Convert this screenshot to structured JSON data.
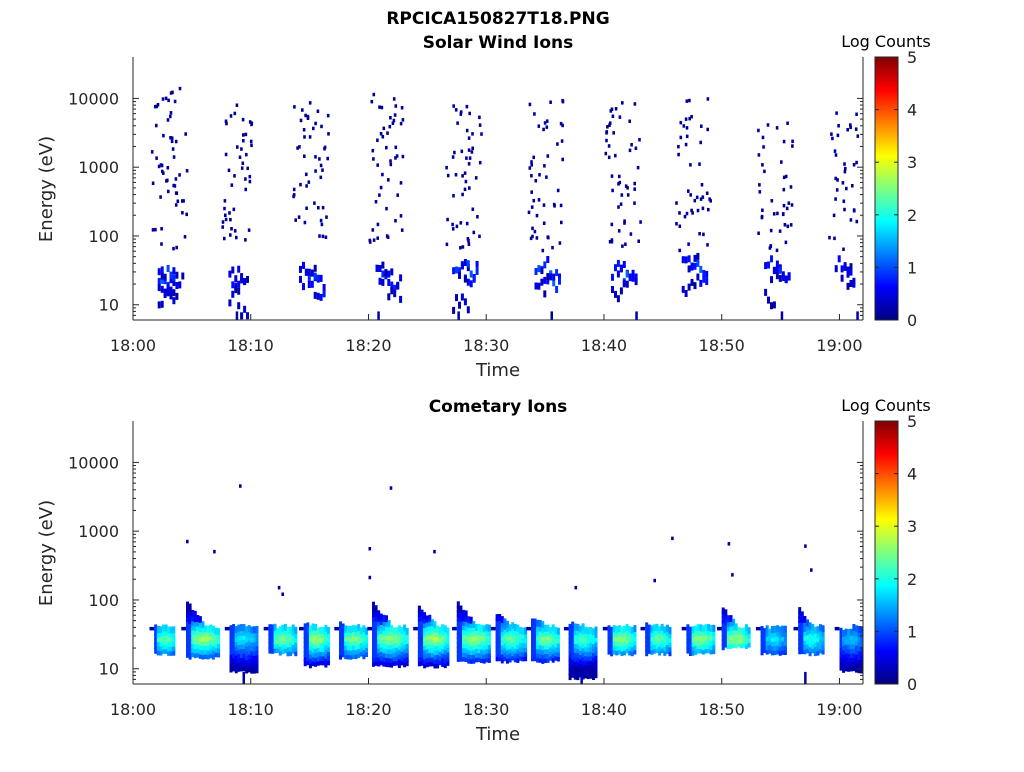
{
  "figure": {
    "title": "RPCICA150827T18.PNG"
  },
  "colormap": {
    "name": "jet",
    "stops": [
      "#00007f",
      "#0000ff",
      "#007fff",
      "#00ffff",
      "#7fff7f",
      "#ffff00",
      "#ff7f00",
      "#ff0000",
      "#7f0000"
    ]
  },
  "chart_data": [
    {
      "type": "heatmap",
      "title": "Solar Wind Ions",
      "xlabel": "Time",
      "ylabel": "Energy (eV)",
      "x_ticks": [
        "18:00",
        "18:10",
        "18:20",
        "18:30",
        "18:40",
        "18:50",
        "19:00"
      ],
      "xlim_minutes": [
        0,
        62
      ],
      "y_scale": "log",
      "y_ticks": [
        10,
        100,
        1000,
        10000
      ],
      "y_tick_labels": [
        "10",
        "100",
        "1000",
        "10000"
      ],
      "ylim": [
        6,
        40000
      ],
      "colorbar": {
        "label": "Log Counts",
        "range": [
          0,
          5
        ],
        "ticks": [
          "0",
          "1",
          "2",
          "3",
          "4",
          "5"
        ]
      },
      "grid": false,
      "clusters": [
        {
          "t_start": 1.5,
          "t_end": 4.5,
          "points": [
            [
              2.5,
              20,
              1.1
            ],
            [
              2.8,
              28,
              1.0
            ],
            [
              3.2,
              22,
              0.9
            ],
            [
              2.6,
              16,
              0.5
            ],
            [
              3.0,
              12,
              0.4
            ]
          ],
          "scatter_e_min": 60,
          "scatter_e_max": 14000,
          "scatter_count": 55
        },
        {
          "t_start": 7.5,
          "t_end": 10.0,
          "points": [
            [
              8.5,
              22,
              0.6
            ],
            [
              9.0,
              28,
              0.5
            ],
            [
              8.2,
              14,
              0.3
            ],
            [
              9.5,
              8,
              0.3
            ]
          ],
          "scatter_e_min": 80,
          "scatter_e_max": 12000,
          "scatter_count": 45
        },
        {
          "t_start": 13.5,
          "t_end": 16.5,
          "points": [
            [
              14.8,
              24,
              0.8
            ],
            [
              15.5,
              20,
              0.8
            ],
            [
              16.0,
              17,
              0.6
            ],
            [
              14.5,
              30,
              0.5
            ]
          ],
          "scatter_e_min": 90,
          "scatter_e_max": 9000,
          "scatter_count": 48
        },
        {
          "t_start": 20.0,
          "t_end": 23.0,
          "points": [
            [
              21.2,
              26,
              0.8
            ],
            [
              22.0,
              22,
              0.7
            ],
            [
              22.5,
              15,
              0.4
            ],
            [
              20.5,
              30,
              0.4
            ]
          ],
          "scatter_e_min": 80,
          "scatter_e_max": 17000,
          "scatter_count": 48
        },
        {
          "t_start": 26.5,
          "t_end": 29.5,
          "points": [
            [
              27.5,
              40,
              0.9
            ],
            [
              28.5,
              30,
              1.0
            ],
            [
              29.0,
              24,
              0.8
            ],
            [
              27.8,
              10,
              0.4
            ]
          ],
          "scatter_e_min": 60,
          "scatter_e_max": 9000,
          "scatter_count": 50
        },
        {
          "t_start": 33.5,
          "t_end": 36.5,
          "points": [
            [
              34.5,
              36,
              1.0
            ],
            [
              35.5,
              26,
              1.1
            ],
            [
              36.0,
              20,
              0.8
            ],
            [
              34.0,
              18,
              0.5
            ]
          ],
          "scatter_e_min": 60,
          "scatter_e_max": 12000,
          "scatter_count": 48
        },
        {
          "t_start": 40.0,
          "t_end": 43.0,
          "points": [
            [
              41.0,
              32,
              0.8
            ],
            [
              41.8,
              26,
              1.0
            ],
            [
              42.3,
              20,
              0.6
            ],
            [
              40.5,
              14,
              0.4
            ]
          ],
          "scatter_e_min": 70,
          "scatter_e_max": 9000,
          "scatter_count": 50
        },
        {
          "t_start": 46.0,
          "t_end": 49.0,
          "points": [
            [
              47.0,
              40,
              0.6
            ],
            [
              48.0,
              30,
              1.0
            ],
            [
              48.5,
              22,
              0.7
            ],
            [
              46.5,
              18,
              0.4
            ]
          ],
          "scatter_e_min": 60,
          "scatter_e_max": 10000,
          "scatter_count": 45
        },
        {
          "t_start": 53.0,
          "t_end": 56.0,
          "points": [
            [
              54.0,
              36,
              0.8
            ],
            [
              54.8,
              28,
              0.7
            ],
            [
              55.5,
              22,
              0.5
            ],
            [
              53.5,
              12,
              0.3
            ]
          ],
          "scatter_e_min": 60,
          "scatter_e_max": 5000,
          "scatter_count": 42
        },
        {
          "t_start": 59.0,
          "t_end": 61.5,
          "points": [
            [
              60.0,
              36,
              0.6
            ],
            [
              60.8,
              28,
              0.5
            ],
            [
              61.3,
              20,
              0.4
            ]
          ],
          "scatter_e_min": 60,
          "scatter_e_max": 9000,
          "scatter_count": 35
        }
      ]
    },
    {
      "type": "heatmap",
      "title": "Cometary Ions",
      "xlabel": "Time",
      "ylabel": "Energy (eV)",
      "x_ticks": [
        "18:00",
        "18:10",
        "18:20",
        "18:30",
        "18:40",
        "18:50",
        "19:00"
      ],
      "xlim_minutes": [
        0,
        62
      ],
      "y_scale": "log",
      "y_ticks": [
        10,
        100,
        1000,
        10000
      ],
      "y_tick_labels": [
        "10",
        "100",
        "1000",
        "10000"
      ],
      "ylim": [
        6,
        40000
      ],
      "colorbar": {
        "label": "Log Counts",
        "range": [
          0,
          5
        ],
        "ticks": [
          "0",
          "1",
          "2",
          "3",
          "4",
          "5"
        ]
      },
      "grid": false,
      "clusters": [
        {
          "t_start": 1.8,
          "t_end": 3.5,
          "peak": 2.3,
          "e_low": 18,
          "e_high": 42
        },
        {
          "t_start": 4.5,
          "t_end": 7.2,
          "peak": 2.6,
          "e_low": 16,
          "e_high": 90
        },
        {
          "t_start": 8.2,
          "t_end": 10.5,
          "peak": 1.7,
          "e_low": 10,
          "e_high": 40
        },
        {
          "t_start": 11.5,
          "t_end": 13.8,
          "peak": 2.4,
          "e_low": 18,
          "e_high": 40
        },
        {
          "t_start": 14.5,
          "t_end": 16.5,
          "peak": 2.6,
          "e_low": 12,
          "e_high": 45
        },
        {
          "t_start": 17.5,
          "t_end": 19.8,
          "peak": 2.4,
          "e_low": 16,
          "e_high": 45
        },
        {
          "t_start": 20.3,
          "t_end": 23.2,
          "peak": 2.5,
          "e_low": 12,
          "e_high": 85
        },
        {
          "t_start": 24.2,
          "t_end": 26.7,
          "peak": 2.6,
          "e_low": 12,
          "e_high": 80
        },
        {
          "t_start": 27.5,
          "t_end": 30.2,
          "peak": 2.6,
          "e_low": 14,
          "e_high": 90
        },
        {
          "t_start": 30.8,
          "t_end": 33.3,
          "peak": 2.3,
          "e_low": 14,
          "e_high": 60
        },
        {
          "t_start": 33.8,
          "t_end": 36.2,
          "peak": 2.4,
          "e_low": 14,
          "e_high": 55
        },
        {
          "t_start": 37.0,
          "t_end": 39.2,
          "peak": 2.2,
          "e_low": 8,
          "e_high": 45
        },
        {
          "t_start": 40.3,
          "t_end": 42.5,
          "peak": 2.5,
          "e_low": 18,
          "e_high": 42
        },
        {
          "t_start": 43.5,
          "t_end": 45.5,
          "peak": 2.3,
          "e_low": 18,
          "e_high": 42
        },
        {
          "t_start": 47.0,
          "t_end": 49.3,
          "peak": 2.5,
          "e_low": 18,
          "e_high": 42
        },
        {
          "t_start": 50.0,
          "t_end": 52.2,
          "peak": 2.6,
          "e_low": 22,
          "e_high": 75
        },
        {
          "t_start": 53.3,
          "t_end": 55.3,
          "peak": 1.7,
          "e_low": 18,
          "e_high": 38
        },
        {
          "t_start": 56.5,
          "t_end": 58.5,
          "peak": 2.0,
          "e_low": 18,
          "e_high": 75
        },
        {
          "t_start": 60.0,
          "t_end": 61.8,
          "peak": 1.5,
          "e_low": 10,
          "e_high": 36
        }
      ],
      "outliers": [
        [
          4.5,
          700
        ],
        [
          6.8,
          500
        ],
        [
          9.0,
          4500
        ],
        [
          12.3,
          150
        ],
        [
          12.6,
          120
        ],
        [
          20.0,
          550
        ],
        [
          20.0,
          210
        ],
        [
          21.8,
          4200
        ],
        [
          25.5,
          500
        ],
        [
          37.5,
          150
        ],
        [
          44.2,
          190
        ],
        [
          45.7,
          780
        ],
        [
          50.5,
          650
        ],
        [
          50.8,
          230
        ],
        [
          57.0,
          600
        ],
        [
          57.5,
          270
        ]
      ]
    }
  ]
}
